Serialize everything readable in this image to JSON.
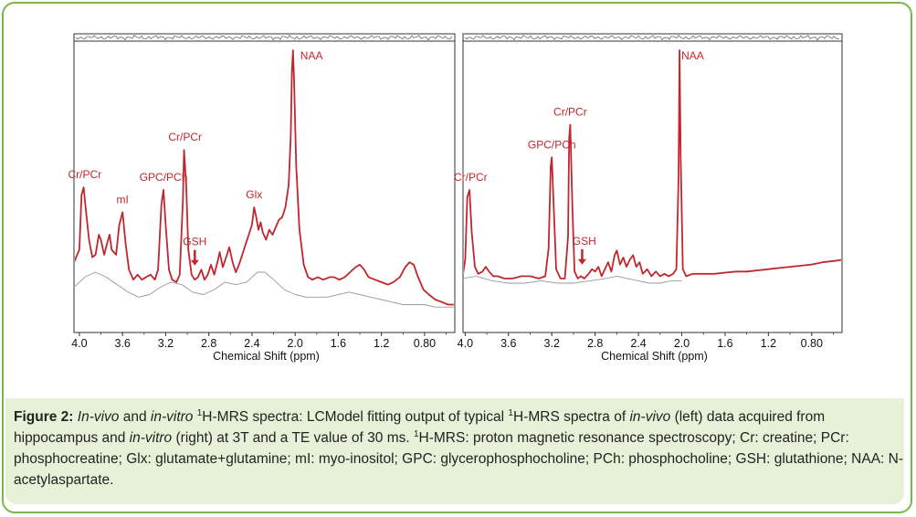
{
  "chart_data": [
    {
      "type": "line",
      "panel": "left",
      "xlabel": "Chemical Shift (ppm)",
      "x_ticks": [
        "4.0",
        "3.6",
        "3.2",
        "2.8",
        "2.4",
        "2.0",
        "1.6",
        "1.2",
        "0.80"
      ],
      "xlim": [
        4.05,
        0.52
      ],
      "x_reversed": true,
      "series": [
        {
          "role": "fit",
          "color": "#c0262d",
          "points": [
            [
              4.05,
              0.15
            ],
            [
              4.02,
              0.18
            ],
            [
              4.0,
              0.2
            ],
            [
              3.98,
              0.42
            ],
            [
              3.96,
              0.45
            ],
            [
              3.94,
              0.36
            ],
            [
              3.91,
              0.24
            ],
            [
              3.88,
              0.17
            ],
            [
              3.85,
              0.18
            ],
            [
              3.82,
              0.26
            ],
            [
              3.8,
              0.24
            ],
            [
              3.77,
              0.18
            ],
            [
              3.74,
              0.23
            ],
            [
              3.72,
              0.26
            ],
            [
              3.7,
              0.2
            ],
            [
              3.66,
              0.18
            ],
            [
              3.63,
              0.3
            ],
            [
              3.6,
              0.35
            ],
            [
              3.57,
              0.22
            ],
            [
              3.54,
              0.12
            ],
            [
              3.5,
              0.08
            ],
            [
              3.46,
              0.1
            ],
            [
              3.42,
              0.08
            ],
            [
              3.38,
              0.09
            ],
            [
              3.34,
              0.1
            ],
            [
              3.3,
              0.08
            ],
            [
              3.27,
              0.12
            ],
            [
              3.24,
              0.38
            ],
            [
              3.22,
              0.44
            ],
            [
              3.2,
              0.3
            ],
            [
              3.17,
              0.12
            ],
            [
              3.14,
              0.08
            ],
            [
              3.1,
              0.07
            ],
            [
              3.07,
              0.1
            ],
            [
              3.04,
              0.4
            ],
            [
              3.03,
              0.6
            ],
            [
              3.01,
              0.46
            ],
            [
              2.99,
              0.2
            ],
            [
              2.96,
              0.1
            ],
            [
              2.93,
              0.08
            ],
            [
              2.9,
              0.09
            ],
            [
              2.87,
              0.12
            ],
            [
              2.84,
              0.08
            ],
            [
              2.81,
              0.1
            ],
            [
              2.78,
              0.14
            ],
            [
              2.75,
              0.1
            ],
            [
              2.72,
              0.15
            ],
            [
              2.7,
              0.19
            ],
            [
              2.67,
              0.13
            ],
            [
              2.64,
              0.17
            ],
            [
              2.61,
              0.21
            ],
            [
              2.58,
              0.15
            ],
            [
              2.55,
              0.11
            ],
            [
              2.52,
              0.14
            ],
            [
              2.49,
              0.18
            ],
            [
              2.46,
              0.22
            ],
            [
              2.43,
              0.26
            ],
            [
              2.4,
              0.3
            ],
            [
              2.38,
              0.37
            ],
            [
              2.36,
              0.33
            ],
            [
              2.34,
              0.28
            ],
            [
              2.32,
              0.31
            ],
            [
              2.3,
              0.27
            ],
            [
              2.27,
              0.24
            ],
            [
              2.24,
              0.28
            ],
            [
              2.21,
              0.26
            ],
            [
              2.18,
              0.29
            ],
            [
              2.15,
              0.32
            ],
            [
              2.12,
              0.33
            ],
            [
              2.09,
              0.37
            ],
            [
              2.06,
              0.46
            ],
            [
              2.04,
              0.66
            ],
            [
              2.03,
              0.91
            ],
            [
              2.02,
              1.0
            ],
            [
              2.01,
              0.88
            ],
            [
              1.99,
              0.54
            ],
            [
              1.96,
              0.28
            ],
            [
              1.92,
              0.14
            ],
            [
              1.88,
              0.09
            ],
            [
              1.84,
              0.08
            ],
            [
              1.79,
              0.09
            ],
            [
              1.74,
              0.08
            ],
            [
              1.68,
              0.09
            ],
            [
              1.64,
              0.09
            ],
            [
              1.59,
              0.08
            ],
            [
              1.54,
              0.09
            ],
            [
              1.49,
              0.11
            ],
            [
              1.44,
              0.13
            ],
            [
              1.4,
              0.14
            ],
            [
              1.36,
              0.12
            ],
            [
              1.32,
              0.09
            ],
            [
              1.26,
              0.08
            ],
            [
              1.2,
              0.07
            ],
            [
              1.14,
              0.06
            ],
            [
              1.09,
              0.07
            ],
            [
              1.03,
              0.09
            ],
            [
              0.98,
              0.13
            ],
            [
              0.94,
              0.15
            ],
            [
              0.9,
              0.14
            ],
            [
              0.86,
              0.09
            ],
            [
              0.81,
              0.04
            ],
            [
              0.76,
              0.02
            ],
            [
              0.7,
              0.0
            ],
            [
              0.64,
              -0.01
            ],
            [
              0.58,
              -0.02
            ],
            [
              0.53,
              -0.02
            ]
          ]
        },
        {
          "role": "baseline",
          "color": "#999999",
          "points": [
            [
              4.05,
              0.05
            ],
            [
              3.95,
              0.09
            ],
            [
              3.85,
              0.11
            ],
            [
              3.75,
              0.09
            ],
            [
              3.65,
              0.06
            ],
            [
              3.55,
              0.03
            ],
            [
              3.45,
              0.01
            ],
            [
              3.35,
              0.02
            ],
            [
              3.25,
              0.05
            ],
            [
              3.15,
              0.07
            ],
            [
              3.05,
              0.06
            ],
            [
              2.95,
              0.03
            ],
            [
              2.85,
              0.02
            ],
            [
              2.75,
              0.04
            ],
            [
              2.65,
              0.07
            ],
            [
              2.55,
              0.06
            ],
            [
              2.45,
              0.07
            ],
            [
              2.35,
              0.11
            ],
            [
              2.28,
              0.11
            ],
            [
              2.2,
              0.08
            ],
            [
              2.1,
              0.04
            ],
            [
              2.0,
              0.02
            ],
            [
              1.9,
              0.01
            ],
            [
              1.8,
              0.01
            ],
            [
              1.7,
              0.01
            ],
            [
              1.6,
              0.02
            ],
            [
              1.5,
              0.03
            ],
            [
              1.4,
              0.02
            ],
            [
              1.3,
              0.01
            ],
            [
              1.2,
              0.0
            ],
            [
              1.1,
              -0.01
            ],
            [
              1.0,
              -0.02
            ],
            [
              0.9,
              -0.02
            ],
            [
              0.8,
              -0.02
            ],
            [
              0.7,
              -0.03
            ],
            [
              0.6,
              -0.03
            ],
            [
              0.53,
              -0.03
            ]
          ]
        }
      ],
      "peak_labels": [
        {
          "text": "Cr/PCr",
          "x": 3.95
        },
        {
          "text": "mI",
          "x": 3.6
        },
        {
          "text": "GPC/PCh",
          "x": 3.22
        },
        {
          "text": "Cr/PCr",
          "x": 3.02
        },
        {
          "text": "GSH",
          "x": 2.93
        },
        {
          "text": "Glx",
          "x": 2.38
        },
        {
          "text": "NAA",
          "x": 1.85
        }
      ],
      "arrow_at_x": 2.93
    },
    {
      "type": "line",
      "panel": "right",
      "xlabel": "Chemical Shift (ppm)",
      "x_ticks": [
        "4.0",
        "3.6",
        "3.2",
        "2.8",
        "2.4",
        "2.0",
        "1.6",
        "1.2",
        "0.80"
      ],
      "xlim": [
        4.02,
        0.52
      ],
      "x_reversed": true,
      "series": [
        {
          "role": "fit",
          "color": "#c0262d",
          "points": [
            [
              4.02,
              0.04
            ],
            [
              4.0,
              0.1
            ],
            [
              3.98,
              0.37
            ],
            [
              3.96,
              0.4
            ],
            [
              3.94,
              0.22
            ],
            [
              3.91,
              0.07
            ],
            [
              3.88,
              0.04
            ],
            [
              3.84,
              0.05
            ],
            [
              3.81,
              0.07
            ],
            [
              3.78,
              0.05
            ],
            [
              3.74,
              0.03
            ],
            [
              3.7,
              0.03
            ],
            [
              3.64,
              0.02
            ],
            [
              3.56,
              0.02
            ],
            [
              3.48,
              0.03
            ],
            [
              3.4,
              0.03
            ],
            [
              3.32,
              0.02
            ],
            [
              3.26,
              0.03
            ],
            [
              3.23,
              0.15
            ],
            [
              3.21,
              0.5
            ],
            [
              3.2,
              0.54
            ],
            [
              3.18,
              0.3
            ],
            [
              3.16,
              0.06
            ],
            [
              3.12,
              0.02
            ],
            [
              3.08,
              0.02
            ],
            [
              3.05,
              0.2
            ],
            [
              3.04,
              0.62
            ],
            [
              3.03,
              0.68
            ],
            [
              3.01,
              0.32
            ],
            [
              2.99,
              0.05
            ],
            [
              2.96,
              0.02
            ],
            [
              2.93,
              0.03
            ],
            [
              2.9,
              0.02
            ],
            [
              2.86,
              0.04
            ],
            [
              2.83,
              0.06
            ],
            [
              2.8,
              0.05
            ],
            [
              2.77,
              0.07
            ],
            [
              2.74,
              0.03
            ],
            [
              2.71,
              0.06
            ],
            [
              2.68,
              0.09
            ],
            [
              2.65,
              0.05
            ],
            [
              2.62,
              0.12
            ],
            [
              2.6,
              0.14
            ],
            [
              2.57,
              0.08
            ],
            [
              2.54,
              0.11
            ],
            [
              2.51,
              0.07
            ],
            [
              2.48,
              0.1
            ],
            [
              2.45,
              0.12
            ],
            [
              2.42,
              0.07
            ],
            [
              2.39,
              0.09
            ],
            [
              2.36,
              0.04
            ],
            [
              2.32,
              0.06
            ],
            [
              2.28,
              0.03
            ],
            [
              2.24,
              0.05
            ],
            [
              2.2,
              0.03
            ],
            [
              2.16,
              0.04
            ],
            [
              2.12,
              0.03
            ],
            [
              2.08,
              0.04
            ],
            [
              2.05,
              0.06
            ],
            [
              2.03,
              0.45
            ],
            [
              2.02,
              1.0
            ],
            [
              2.01,
              0.55
            ],
            [
              1.99,
              0.06
            ],
            [
              1.96,
              0.03
            ],
            [
              1.9,
              0.04
            ],
            [
              1.8,
              0.04
            ],
            [
              1.7,
              0.04
            ],
            [
              1.6,
              0.045
            ],
            [
              1.5,
              0.05
            ],
            [
              1.4,
              0.05
            ],
            [
              1.3,
              0.055
            ],
            [
              1.2,
              0.06
            ],
            [
              1.1,
              0.065
            ],
            [
              1.0,
              0.07
            ],
            [
              0.9,
              0.075
            ],
            [
              0.8,
              0.08
            ],
            [
              0.7,
              0.09
            ],
            [
              0.6,
              0.095
            ],
            [
              0.52,
              0.1
            ]
          ]
        },
        {
          "role": "baseline",
          "color": "#999999",
          "points": [
            [
              4.02,
              0.02
            ],
            [
              3.9,
              0.03
            ],
            [
              3.75,
              0.01
            ],
            [
              3.6,
              0.0
            ],
            [
              3.45,
              0.0
            ],
            [
              3.3,
              0.01
            ],
            [
              3.15,
              0.0
            ],
            [
              3.0,
              0.0
            ],
            [
              2.85,
              0.01
            ],
            [
              2.7,
              0.02
            ],
            [
              2.6,
              0.03
            ],
            [
              2.5,
              0.02
            ],
            [
              2.4,
              0.01
            ],
            [
              2.3,
              0.0
            ],
            [
              2.2,
              0.0
            ],
            [
              2.1,
              0.01
            ],
            [
              2.0,
              0.01
            ]
          ]
        }
      ],
      "peak_labels": [
        {
          "text": "Cr/PCr",
          "x": 3.95
        },
        {
          "text": "GPC/PCh",
          "x": 3.2
        },
        {
          "text": "Cr/PCr",
          "x": 3.03
        },
        {
          "text": "GSH",
          "x": 2.9
        },
        {
          "text": "NAA",
          "x": 2.0
        }
      ],
      "arrow_at_x": 2.92
    }
  ],
  "caption": {
    "label": "Figure 2:",
    "parts": [
      {
        "t": "i",
        "v": "In-vivo"
      },
      {
        "t": "n",
        "v": " and "
      },
      {
        "t": "i",
        "v": "in-vitro"
      },
      {
        "t": "n",
        "v": " "
      },
      {
        "t": "s",
        "v": "1"
      },
      {
        "t": "n",
        "v": "H-MRS spectra: LCModel fitting output of typical "
      },
      {
        "t": "s",
        "v": "1"
      },
      {
        "t": "n",
        "v": "H-MRS spectra of "
      },
      {
        "t": "i",
        "v": "in-vivo"
      },
      {
        "t": "n",
        "v": " (left) data acquired from hippocampus and "
      },
      {
        "t": "i",
        "v": "in-vitro"
      },
      {
        "t": "n",
        "v": " (right) at 3T and a TE value of 30 ms. "
      },
      {
        "t": "s",
        "v": "1"
      },
      {
        "t": "n",
        "v": "H-MRS: proton magnetic resonance spectroscopy; Cr: creatine; PCr: phosphocreatine; Glx: glutamate+glutamine; mI: myo-inositol; GPC: glycerophosphocholine; PCh: phosphocholine; GSH: glutathione; NAA: N-acetylaspartate."
      }
    ]
  },
  "colors": {
    "fit": "#c0262d",
    "baseline": "#999999",
    "residual": "#666666",
    "frame_border": "#7ab648",
    "caption_background": "#e7f1d8"
  }
}
